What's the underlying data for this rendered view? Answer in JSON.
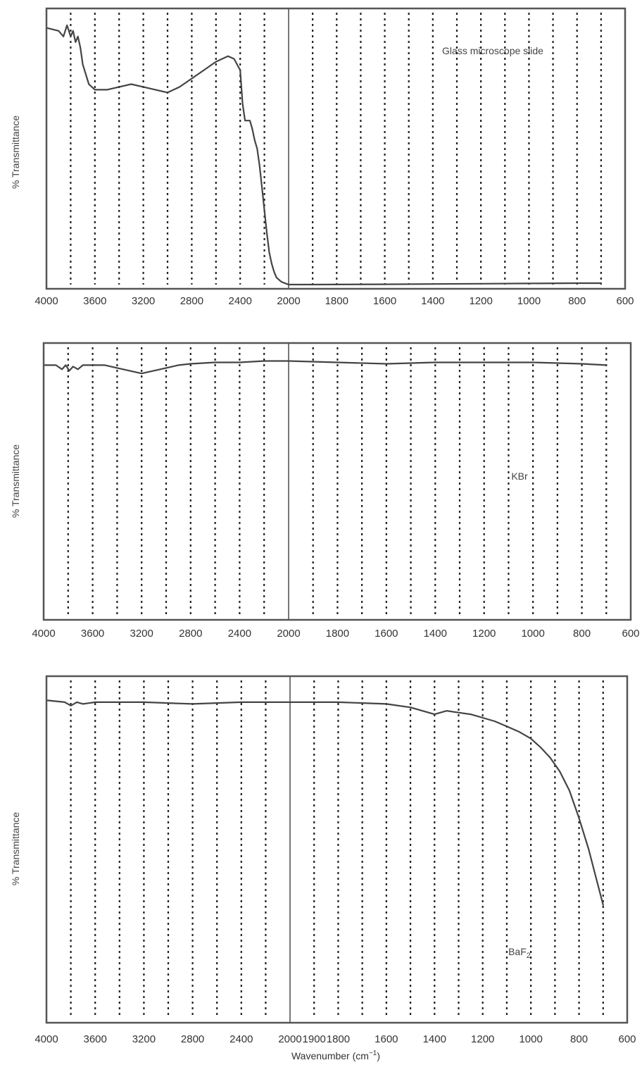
{
  "chart_data": [
    {
      "type": "line",
      "ylabel": "% Transmittance",
      "xlabel": "",
      "x_ticks": [
        "4000",
        "3600",
        "3200",
        "2800",
        "2400",
        "2000",
        "1800",
        "1600",
        "1400",
        "1200",
        "1000",
        "800",
        "600"
      ],
      "annotation": "Glass microscope slide",
      "xlim": [
        4000,
        600
      ],
      "x_scale": "split at 2000 (4000–2000 compressed, 2000–600 expanded)",
      "ylim": [
        0,
        100
      ],
      "grid": true,
      "series": [
        {
          "x": [
            3990,
            3900,
            3860,
            3830,
            3800,
            3780,
            3760,
            3740,
            3720,
            3700,
            3650,
            3600,
            3500,
            3400,
            3300,
            3200,
            3100,
            3000,
            2900,
            2800,
            2700,
            2600,
            2550,
            2500,
            2450,
            2400,
            2380,
            2360,
            2340,
            2320,
            2300,
            2280,
            2260,
            2240,
            2220,
            2200,
            2180,
            2160,
            2140,
            2120,
            2100,
            2060,
            2020,
            2000,
            1900,
            1600,
            1200,
            1000,
            800,
            700
          ],
          "y": [
            93,
            92,
            90,
            94,
            90,
            92,
            88,
            90,
            86,
            80,
            73,
            71,
            71,
            72,
            73,
            72,
            71,
            70,
            72,
            75,
            78,
            81,
            82,
            83,
            82,
            78,
            66,
            60,
            60,
            60,
            57,
            53,
            50,
            44,
            36,
            28,
            20,
            13,
            9,
            6,
            4,
            2.5,
            1.8,
            1.5,
            1.5,
            1.6,
            1.8,
            1.9,
            2,
            2
          ]
        }
      ]
    },
    {
      "type": "line",
      "ylabel": "% Transmittance",
      "xlabel": "",
      "x_ticks": [
        "4000",
        "3600",
        "3200",
        "2800",
        "2400",
        "2000",
        "1800",
        "1600",
        "1400",
        "1200",
        "1000",
        "800",
        "600"
      ],
      "annotation": "KBr",
      "xlim": [
        4000,
        600
      ],
      "x_scale": "split at 2000 (4000–2000 compressed, 2000–600 expanded)",
      "ylim": [
        0,
        100
      ],
      "grid": true,
      "series": [
        {
          "x": [
            3990,
            3900,
            3850,
            3820,
            3790,
            3760,
            3720,
            3680,
            3600,
            3500,
            3400,
            3300,
            3200,
            3100,
            3000,
            2900,
            2800,
            2600,
            2400,
            2200,
            2000,
            1800,
            1600,
            1400,
            1200,
            1000,
            800,
            700
          ],
          "y": [
            92,
            92,
            90.5,
            92,
            90,
            91.5,
            90.5,
            92,
            92,
            92,
            91,
            90,
            89,
            90,
            91,
            92,
            92.5,
            93,
            93,
            93.5,
            93.5,
            93,
            92.5,
            93,
            93,
            93,
            92.5,
            92
          ]
        }
      ]
    },
    {
      "type": "line",
      "ylabel": "% Transmittance",
      "xlabel": "Wavenumber (cm",
      "xlabel_sup": "−1",
      "xlabel_suffix": ")",
      "x_ticks": [
        "4000",
        "3600",
        "3200",
        "2800",
        "2400",
        "2000",
        "1900",
        "1800",
        "1600",
        "1400",
        "1200",
        "1000",
        "800",
        "600"
      ],
      "annotation": "BaF",
      "annotation_sub": "2",
      "xlim": [
        4000,
        600
      ],
      "x_scale": "split at 2000 (4000–2000 compressed, 2000–600 expanded)",
      "ylim": [
        0,
        100
      ],
      "grid": true,
      "series": [
        {
          "x": [
            3990,
            3850,
            3800,
            3750,
            3700,
            3600,
            3200,
            2800,
            2400,
            2000,
            1800,
            1600,
            1500,
            1450,
            1400,
            1350,
            1300,
            1250,
            1200,
            1150,
            1100,
            1050,
            1000,
            960,
            920,
            880,
            840,
            800,
            760,
            730,
            700
          ],
          "y": [
            93,
            92.5,
            91.5,
            92.5,
            92,
            92.5,
            92.5,
            92,
            92.5,
            92.5,
            92.5,
            92,
            91,
            90,
            89,
            90,
            89.5,
            89,
            88,
            87,
            85.5,
            84,
            82,
            79.5,
            76.5,
            72.5,
            67,
            59,
            50,
            42,
            34
          ]
        }
      ]
    }
  ]
}
